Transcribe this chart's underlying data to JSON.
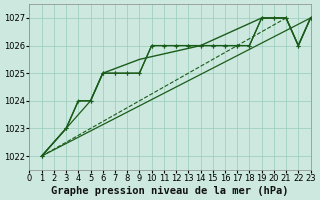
{
  "bg_color": "#cce8df",
  "grid_color": "#99ccbb",
  "line_color": "#1a5c1a",
  "xlabel": "Graphe pression niveau de la mer (hPa)",
  "xlim": [
    0,
    23
  ],
  "ylim": [
    1021.5,
    1027.5
  ],
  "yticks": [
    1022,
    1023,
    1024,
    1025,
    1026,
    1027
  ],
  "xticks": [
    0,
    1,
    2,
    3,
    4,
    5,
    6,
    7,
    8,
    9,
    10,
    11,
    12,
    13,
    14,
    15,
    16,
    17,
    18,
    19,
    20,
    21,
    22,
    23
  ],
  "xlabel_fontsize": 7.5,
  "tick_fontsize": 6.0,
  "line1_x": [
    1,
    3,
    4,
    5,
    6,
    7,
    8,
    9,
    10,
    11,
    12,
    13,
    14,
    15,
    16,
    17,
    18,
    19,
    20,
    21,
    22,
    23
  ],
  "line1_y": [
    1022,
    1023,
    1024,
    1024,
    1025,
    1025,
    1025,
    1025,
    1026,
    1026,
    1026,
    1026,
    1026,
    1026,
    1026,
    1026,
    1026,
    1027,
    1027,
    1027,
    1026,
    1027
  ],
  "line2_x": [
    1,
    3,
    5,
    6,
    7,
    8,
    9,
    10,
    11,
    12,
    13,
    14,
    15,
    16,
    17,
    18,
    19,
    20,
    21,
    22,
    23
  ],
  "line2_y": [
    1022,
    1023,
    1024,
    1025,
    1025,
    1025,
    1025,
    1026,
    1026,
    1026,
    1026,
    1026,
    1026,
    1026,
    1026,
    1026,
    1027,
    1027,
    1027,
    1026,
    1027
  ],
  "line3_x": [
    1,
    3,
    4,
    5,
    6,
    9,
    14,
    19,
    20,
    21,
    22,
    23
  ],
  "line3_y": [
    1022,
    1023,
    1024,
    1024,
    1025,
    1025.5,
    1026,
    1027,
    1027,
    1027,
    1026,
    1027
  ],
  "line4_x": [
    1,
    23
  ],
  "line4_y": [
    1022,
    1027
  ],
  "line5_x": [
    1,
    21
  ],
  "line5_y": [
    1022,
    1027
  ]
}
